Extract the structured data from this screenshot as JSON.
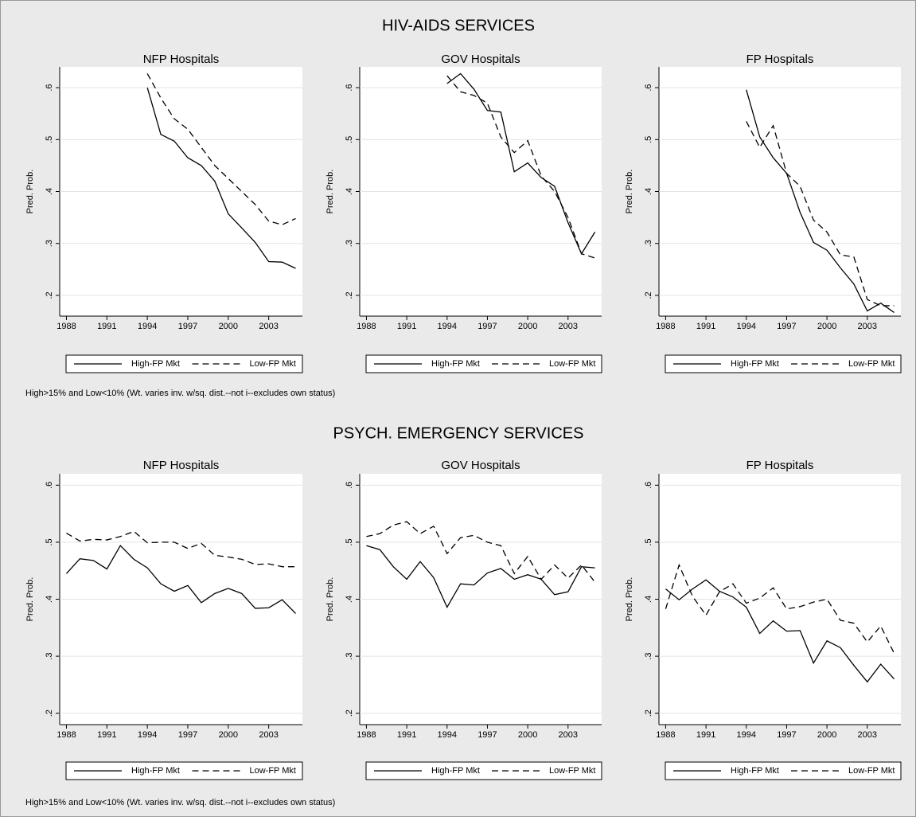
{
  "sections": [
    {
      "title": "HIV-AIDS SERVICES",
      "note": "High>15% and Low<10% (Wt. varies inv. w/sq. dist.--not i--excludes own status)"
    },
    {
      "title": "PSYCH. EMERGENCY SERVICES",
      "note": "High>15% and Low<10% (Wt. varies inv. w/sq. dist.--not i--excludes own status)"
    }
  ],
  "chart_data": [
    {
      "type": "line",
      "title": "NFP Hospitals",
      "ylabel": "Pred. Prob.",
      "x": [
        1988,
        1989,
        1990,
        1991,
        1992,
        1993,
        1994,
        1995,
        1996,
        1997,
        1998,
        1999,
        2000,
        2001,
        2002,
        2003,
        2004,
        2005
      ],
      "xlim": [
        1987.5,
        2005.5
      ],
      "xticks": [
        1988,
        1991,
        1994,
        1997,
        2000,
        2003
      ],
      "ylim": [
        0.16,
        0.64
      ],
      "yticks": [
        {
          "value": 0.2,
          "label": ".2"
        },
        {
          "value": 0.3,
          "label": ".3"
        },
        {
          "value": 0.4,
          "label": ".4"
        },
        {
          "value": 0.5,
          "label": ".5"
        },
        {
          "value": 0.6,
          "label": ".6"
        }
      ],
      "grid": true,
      "legend": "bottom",
      "series": [
        {
          "name": "High-FP Mkt",
          "color": "#000000",
          "linestyle": "solid",
          "values": [
            null,
            null,
            null,
            null,
            null,
            null,
            0.6,
            0.51,
            0.497,
            0.465,
            0.45,
            0.42,
            0.357,
            0.33,
            0.302,
            0.265,
            0.264,
            0.252
          ]
        },
        {
          "name": "Low-FP Mkt",
          "color": "#000000",
          "linestyle": "dashed",
          "values": [
            null,
            null,
            null,
            null,
            null,
            null,
            0.627,
            0.58,
            0.54,
            0.52,
            0.485,
            0.45,
            0.425,
            0.4,
            0.375,
            0.343,
            0.336,
            0.348
          ]
        }
      ]
    },
    {
      "type": "line",
      "title": "GOV Hospitals",
      "ylabel": "Pred. Prob.",
      "x": [
        1988,
        1989,
        1990,
        1991,
        1992,
        1993,
        1994,
        1995,
        1996,
        1997,
        1998,
        1999,
        2000,
        2001,
        2002,
        2003,
        2004,
        2005
      ],
      "xlim": [
        1987.5,
        2005.5
      ],
      "xticks": [
        1988,
        1991,
        1994,
        1997,
        2000,
        2003
      ],
      "ylim": [
        0.16,
        0.64
      ],
      "yticks": [
        {
          "value": 0.2,
          "label": ".2"
        },
        {
          "value": 0.3,
          "label": ".3"
        },
        {
          "value": 0.4,
          "label": ".4"
        },
        {
          "value": 0.5,
          "label": ".5"
        },
        {
          "value": 0.6,
          "label": ".6"
        }
      ],
      "grid": true,
      "legend": "bottom",
      "series": [
        {
          "name": "High-FP Mkt",
          "color": "#000000",
          "linestyle": "solid",
          "values": [
            null,
            null,
            null,
            null,
            null,
            null,
            0.608,
            0.627,
            0.597,
            0.556,
            0.553,
            0.438,
            0.455,
            0.427,
            0.41,
            0.34,
            0.28,
            0.322
          ]
        },
        {
          "name": "Low-FP Mkt",
          "color": "#000000",
          "linestyle": "dashed",
          "values": [
            null,
            null,
            null,
            null,
            null,
            null,
            0.623,
            0.592,
            0.585,
            0.57,
            0.505,
            0.475,
            0.498,
            0.43,
            0.4,
            0.35,
            0.28,
            0.272
          ]
        }
      ]
    },
    {
      "type": "line",
      "title": "FP Hospitals",
      "ylabel": "Pred. Prob.",
      "x": [
        1988,
        1989,
        1990,
        1991,
        1992,
        1993,
        1994,
        1995,
        1996,
        1997,
        1998,
        1999,
        2000,
        2001,
        2002,
        2003,
        2004,
        2005
      ],
      "xlim": [
        1987.5,
        2005.5
      ],
      "xticks": [
        1988,
        1991,
        1994,
        1997,
        2000,
        2003
      ],
      "ylim": [
        0.16,
        0.64
      ],
      "yticks": [
        {
          "value": 0.2,
          "label": ".2"
        },
        {
          "value": 0.3,
          "label": ".3"
        },
        {
          "value": 0.4,
          "label": ".4"
        },
        {
          "value": 0.5,
          "label": ".5"
        },
        {
          "value": 0.6,
          "label": ".6"
        }
      ],
      "grid": true,
      "legend": "bottom",
      "series": [
        {
          "name": "High-FP Mkt",
          "color": "#000000",
          "linestyle": "solid",
          "values": [
            null,
            null,
            null,
            null,
            null,
            null,
            0.596,
            0.505,
            0.465,
            0.435,
            0.36,
            0.302,
            0.287,
            0.253,
            0.222,
            0.17,
            0.185,
            0.167
          ]
        },
        {
          "name": "Low-FP Mkt",
          "color": "#000000",
          "linestyle": "dashed",
          "values": [
            null,
            null,
            null,
            null,
            null,
            null,
            0.535,
            0.485,
            0.527,
            0.435,
            0.41,
            0.345,
            0.322,
            0.278,
            0.274,
            0.192,
            0.18,
            0.18
          ]
        }
      ]
    },
    {
      "type": "line",
      "title": "NFP Hospitals",
      "ylabel": "Pred. Prob.",
      "x": [
        1988,
        1989,
        1990,
        1991,
        1992,
        1993,
        1994,
        1995,
        1996,
        1997,
        1998,
        1999,
        2000,
        2001,
        2002,
        2003,
        2004,
        2005
      ],
      "xlim": [
        1987.5,
        2005.5
      ],
      "xticks": [
        1988,
        1991,
        1994,
        1997,
        2000,
        2003
      ],
      "ylim": [
        0.18,
        0.62
      ],
      "yticks": [
        {
          "value": 0.2,
          "label": ".2"
        },
        {
          "value": 0.3,
          "label": ".3"
        },
        {
          "value": 0.4,
          "label": ".4"
        },
        {
          "value": 0.5,
          "label": ".5"
        },
        {
          "value": 0.6,
          "label": ".6"
        }
      ],
      "grid": true,
      "legend": "bottom",
      "series": [
        {
          "name": "High-FP Mkt",
          "color": "#000000",
          "linestyle": "solid",
          "values": [
            0.445,
            0.471,
            0.468,
            0.453,
            0.494,
            0.47,
            0.455,
            0.427,
            0.414,
            0.424,
            0.394,
            0.41,
            0.419,
            0.41,
            0.384,
            0.385,
            0.399,
            0.375
          ]
        },
        {
          "name": "Low-FP Mkt",
          "color": "#000000",
          "linestyle": "dashed",
          "values": [
            0.516,
            0.502,
            0.505,
            0.504,
            0.51,
            0.519,
            0.499,
            0.5,
            0.5,
            0.489,
            0.498,
            0.477,
            0.474,
            0.47,
            0.461,
            0.462,
            0.457,
            0.457
          ]
        }
      ]
    },
    {
      "type": "line",
      "title": "GOV Hospitals",
      "ylabel": "Pred. Prob.",
      "x": [
        1988,
        1989,
        1990,
        1991,
        1992,
        1993,
        1994,
        1995,
        1996,
        1997,
        1998,
        1999,
        2000,
        2001,
        2002,
        2003,
        2004,
        2005
      ],
      "xlim": [
        1987.5,
        2005.5
      ],
      "xticks": [
        1988,
        1991,
        1994,
        1997,
        2000,
        2003
      ],
      "ylim": [
        0.18,
        0.62
      ],
      "yticks": [
        {
          "value": 0.2,
          "label": ".2"
        },
        {
          "value": 0.3,
          "label": ".3"
        },
        {
          "value": 0.4,
          "label": ".4"
        },
        {
          "value": 0.5,
          "label": ".5"
        },
        {
          "value": 0.6,
          "label": ".6"
        }
      ],
      "grid": true,
      "legend": "bottom",
      "series": [
        {
          "name": "High-FP Mkt",
          "color": "#000000",
          "linestyle": "solid",
          "values": [
            0.494,
            0.487,
            0.457,
            0.435,
            0.466,
            0.438,
            0.386,
            0.427,
            0.425,
            0.446,
            0.454,
            0.435,
            0.443,
            0.435,
            0.408,
            0.413,
            0.457,
            0.455
          ]
        },
        {
          "name": "Low-FP Mkt",
          "color": "#000000",
          "linestyle": "dashed",
          "values": [
            0.51,
            0.515,
            0.53,
            0.536,
            0.515,
            0.528,
            0.48,
            0.508,
            0.512,
            0.5,
            0.494,
            0.445,
            0.475,
            0.435,
            0.46,
            0.437,
            0.46,
            0.43
          ]
        }
      ]
    },
    {
      "type": "line",
      "title": "FP Hospitals",
      "ylabel": "Pred. Prob.",
      "x": [
        1988,
        1989,
        1990,
        1991,
        1992,
        1993,
        1994,
        1995,
        1996,
        1997,
        1998,
        1999,
        2000,
        2001,
        2002,
        2003,
        2004,
        2005
      ],
      "xlim": [
        1987.5,
        2005.5
      ],
      "xticks": [
        1988,
        1991,
        1994,
        1997,
        2000,
        2003
      ],
      "ylim": [
        0.18,
        0.62
      ],
      "yticks": [
        {
          "value": 0.2,
          "label": ".2"
        },
        {
          "value": 0.3,
          "label": ".3"
        },
        {
          "value": 0.4,
          "label": ".4"
        },
        {
          "value": 0.5,
          "label": ".5"
        },
        {
          "value": 0.6,
          "label": ".6"
        }
      ],
      "grid": true,
      "legend": "bottom",
      "series": [
        {
          "name": "High-FP Mkt",
          "color": "#000000",
          "linestyle": "solid",
          "values": [
            0.418,
            0.399,
            0.418,
            0.434,
            0.414,
            0.404,
            0.386,
            0.34,
            0.362,
            0.344,
            0.345,
            0.288,
            0.327,
            0.315,
            0.284,
            0.255,
            0.286,
            0.26
          ]
        },
        {
          "name": "Low-FP Mkt",
          "color": "#000000",
          "linestyle": "dashed",
          "values": [
            0.383,
            0.46,
            0.405,
            0.372,
            0.413,
            0.427,
            0.393,
            0.402,
            0.42,
            0.383,
            0.387,
            0.395,
            0.4,
            0.363,
            0.358,
            0.325,
            0.353,
            0.305
          ]
        }
      ]
    }
  ]
}
